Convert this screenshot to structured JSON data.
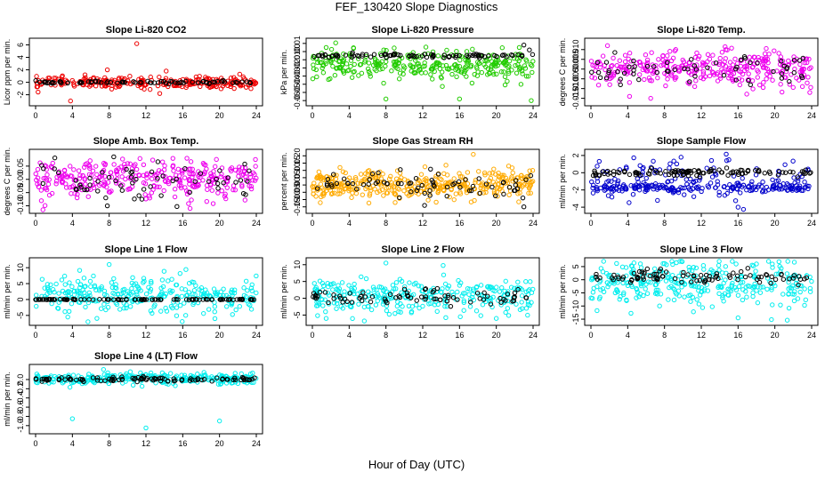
{
  "figure": {
    "title": "FEF_130420  Slope Diagnostics",
    "xlabel": "Hour of Day (UTC)"
  },
  "colors": {
    "black": "#000000",
    "red": "#ee0000",
    "green": "#22cc00",
    "magenta": "#ee00ee",
    "orange": "#ffaa00",
    "blue": "#0000cc",
    "cyan": "#00eeee"
  },
  "chart_data": [
    {
      "id": "co2",
      "type": "scatter",
      "title": "Slope Li-820 CO2",
      "ylabel": "Licor ppm per min.",
      "xlim": [
        0,
        24
      ],
      "ylim": [
        -3.2,
        6.5
      ],
      "xticks": [
        "0",
        "4",
        "8",
        "12",
        "16",
        "20",
        "24"
      ],
      "yticks": [
        -2,
        0,
        2,
        4,
        6
      ],
      "ytick_labels": [
        "-2",
        "0",
        "2",
        "4",
        "6"
      ],
      "series": [
        {
          "name": "primary",
          "color": "red",
          "center": 0.0,
          "spread": 0.45,
          "count": 260,
          "outliers": [
            [
              11,
              6.2
            ],
            [
              3.8,
              -3.0
            ],
            [
              7.8,
              2.0
            ],
            [
              13.5,
              -1.8
            ],
            [
              14.2,
              1.8
            ]
          ]
        },
        {
          "name": "secondary",
          "color": "black",
          "center": 0.0,
          "spread": 0.1,
          "count": 80,
          "outliers": []
        }
      ]
    },
    {
      "id": "pressure",
      "type": "scatter",
      "title": "Slope Li-820 Pressure",
      "ylabel": "kPa per min.",
      "xlim": [
        0,
        24
      ],
      "ylim": [
        -0.062,
        0.012
      ],
      "xticks": [
        "0",
        "4",
        "8",
        "12",
        "16",
        "20",
        "24"
      ],
      "yticks": [
        0.01,
        0.0,
        -0.01,
        -0.02,
        -0.03,
        -0.04,
        -0.05,
        -0.06
      ],
      "ytick_labels": [
        "0.01",
        "0.00",
        "-0.01",
        "-0.02",
        "-0.03",
        "-0.04",
        "-0.05",
        "-0.06"
      ],
      "series": [
        {
          "name": "primary",
          "color": "green",
          "center": -0.017,
          "spread": 0.009,
          "count": 320,
          "outliers": [
            [
              8,
              -0.058
            ],
            [
              16,
              -0.058
            ],
            [
              23.8,
              -0.06
            ],
            [
              1.5,
              0.005
            ],
            [
              22.5,
              0.005
            ]
          ]
        },
        {
          "name": "secondary",
          "color": "black",
          "center": -0.005,
          "spread": 0.0012,
          "count": 90,
          "outliers": [
            [
              23,
              0.008
            ],
            [
              23.6,
              0.002
            ]
          ]
        }
      ]
    },
    {
      "id": "temp",
      "type": "scatter",
      "title": "Slope Li-820 Temp.",
      "ylabel": "degrees C per min.",
      "xlim": [
        0,
        24
      ],
      "ylim": [
        -0.017,
        0.014
      ],
      "xticks": [
        "0",
        "4",
        "8",
        "12",
        "16",
        "20",
        "24"
      ],
      "yticks": [
        0.01,
        0.005,
        0.0,
        -0.005,
        -0.01,
        -0.015
      ],
      "ytick_labels": [
        "0.010",
        "0.005",
        "0.000",
        "-0.005",
        "-0.010",
        "-0.015"
      ],
      "series": [
        {
          "name": "primary",
          "color": "magenta",
          "center": 0.0,
          "spread": 0.0045,
          "count": 320,
          "outliers": [
            [
              1.8,
              0.012
            ],
            [
              4.2,
              -0.014
            ],
            [
              6.5,
              -0.015
            ],
            [
              23.8,
              -0.012
            ]
          ]
        },
        {
          "name": "secondary",
          "color": "black",
          "center": 0.0,
          "spread": 0.004,
          "count": 60,
          "outliers": []
        }
      ]
    },
    {
      "id": "ambbox",
      "type": "scatter",
      "title": "Slope Amb. Box Temp.",
      "ylabel": "degrees C per min.",
      "xlim": [
        0,
        24
      ],
      "ylim": [
        -0.115,
        0.1
      ],
      "xticks": [
        "0",
        "4",
        "8",
        "12",
        "16",
        "20",
        "24"
      ],
      "yticks": [
        0.05,
        0.0,
        -0.05,
        -0.1
      ],
      "ytick_labels": [
        "0.05",
        "0.00",
        "-0.05",
        "-0.10"
      ],
      "series": [
        {
          "name": "primary",
          "color": "magenta",
          "center": 0.0,
          "spread": 0.035,
          "count": 330,
          "outliers": [
            [
              16.8,
              -0.11
            ]
          ]
        },
        {
          "name": "secondary",
          "color": "black",
          "center": 0.0,
          "spread": 0.035,
          "count": 60,
          "outliers": [
            [
              8.5,
              0.085
            ],
            [
              7.8,
              -0.1
            ]
          ]
        }
      ]
    },
    {
      "id": "rh",
      "type": "scatter",
      "title": "Slope Gas Stream RH",
      "ylabel": "percent per min.",
      "xlim": [
        0,
        24
      ],
      "ylim": [
        -0.17,
        0.22
      ],
      "xticks": [
        "0",
        "4",
        "8",
        "12",
        "16",
        "20",
        "24"
      ],
      "yticks": [
        0.2,
        0.15,
        0.1,
        0.05,
        0.0,
        -0.05,
        -0.1,
        -0.15
      ],
      "ytick_labels": [
        "0.20",
        "0.15",
        "0.10",
        "0.05",
        "0.00",
        "-0.05",
        "-0.10",
        "-0.15"
      ],
      "series": [
        {
          "name": "primary",
          "color": "orange",
          "center": 0.0,
          "spread": 0.05,
          "count": 380,
          "outliers": [
            [
              17.5,
              0.21
            ],
            [
              3,
              0.12
            ],
            [
              9,
              -0.12
            ]
          ]
        },
        {
          "name": "secondary",
          "color": "black",
          "center": 0.0,
          "spread": 0.05,
          "count": 70,
          "outliers": [
            [
              23,
              -0.15
            ],
            [
              12.2,
              -0.14
            ]
          ]
        }
      ]
    },
    {
      "id": "sample",
      "type": "scatter",
      "title": "Slope Sample Flow",
      "ylabel": "ml/min per min.",
      "xlim": [
        0,
        24
      ],
      "ylim": [
        -4.3,
        2.3
      ],
      "xticks": [
        "0",
        "4",
        "8",
        "12",
        "16",
        "20",
        "24"
      ],
      "yticks": [
        2,
        0,
        -2,
        -4
      ],
      "ytick_labels": [
        "2",
        "0",
        "-2",
        "-4"
      ],
      "series": [
        {
          "name": "primary",
          "color": "blue",
          "center": -1.8,
          "spread": 0.25,
          "count": 180,
          "outliers": [
            [
              9.8,
              1.8
            ],
            [
              16,
              -4.0
            ],
            [
              15,
              1.5
            ]
          ]
        },
        {
          "name": "scatter",
          "color": "blue",
          "center": -0.6,
          "spread": 1.1,
          "count": 110,
          "outliers": []
        },
        {
          "name": "secondary",
          "color": "black",
          "center": 0.05,
          "spread": 0.2,
          "count": 110,
          "outliers": []
        }
      ]
    },
    {
      "id": "line1",
      "type": "scatter",
      "title": "Slope Line 1 Flow",
      "ylabel": "ml/min per min.",
      "xlim": [
        0,
        24
      ],
      "ylim": [
        -7,
        12
      ],
      "xticks": [
        "0",
        "4",
        "8",
        "12",
        "16",
        "20",
        "24"
      ],
      "yticks": [
        10,
        5,
        0,
        -5
      ],
      "ytick_labels": [
        "10",
        "5",
        "0",
        "-5"
      ],
      "series": [
        {
          "name": "primary",
          "color": "cyan",
          "center": 1.5,
          "spread": 2.8,
          "count": 300,
          "outliers": [
            [
              8,
              11
            ],
            [
              3.5,
              -5.5
            ],
            [
              19.5,
              -6
            ]
          ]
        },
        {
          "name": "secondary",
          "color": "black",
          "center": 0.0,
          "spread": 0.05,
          "count": 110,
          "outliers": []
        }
      ]
    },
    {
      "id": "line2",
      "type": "scatter",
      "title": "Slope Line 2 Flow",
      "ylabel": "ml/min per min.",
      "xlim": [
        0,
        24
      ],
      "ylim": [
        -7,
        11
      ],
      "xticks": [
        "0",
        "4",
        "8",
        "12",
        "16",
        "20",
        "24"
      ],
      "yticks": [
        10,
        5,
        0,
        -5
      ],
      "ytick_labels": [
        "10",
        "5",
        "0",
        "-5"
      ],
      "series": [
        {
          "name": "primary",
          "color": "cyan",
          "center": 0.5,
          "spread": 2.6,
          "count": 300,
          "outliers": [
            [
              8,
              10.5
            ],
            [
              1.5,
              -6
            ],
            [
              20,
              -6
            ]
          ]
        },
        {
          "name": "secondary",
          "color": "black",
          "center": 0.3,
          "spread": 1.1,
          "count": 80,
          "outliers": []
        }
      ]
    },
    {
      "id": "line3",
      "type": "scatter",
      "title": "Slope Line 3 Flow",
      "ylabel": "ml/min per min.",
      "xlim": [
        0,
        24
      ],
      "ylim": [
        -16,
        7
      ],
      "xticks": [
        "0",
        "4",
        "8",
        "12",
        "16",
        "20",
        "24"
      ],
      "yticks": [
        5,
        0,
        -5,
        -10,
        -15
      ],
      "ytick_labels": [
        "5",
        "0",
        "-5",
        "-10",
        "-15"
      ],
      "series": [
        {
          "name": "primary",
          "color": "cyan",
          "center": -1.5,
          "spread": 4.5,
          "count": 320,
          "outliers": [
            [
              16,
              -14.5
            ],
            [
              18,
              6
            ]
          ]
        },
        {
          "name": "secondary",
          "color": "black",
          "center": 1.0,
          "spread": 1.3,
          "count": 90,
          "outliers": []
        }
      ]
    },
    {
      "id": "line4",
      "type": "scatter",
      "title": "Slope Line 4 (LT) Flow",
      "ylabel": "ml/min per min.",
      "xlim": [
        0,
        24
      ],
      "ylim": [
        -1.1,
        0.25
      ],
      "xticks": [
        "0",
        "4",
        "8",
        "12",
        "16",
        "20",
        "24"
      ],
      "yticks": [
        0.0,
        -0.2,
        -0.4,
        -0.6,
        -0.8,
        -1.0
      ],
      "ytick_labels": [
        "0.0",
        "-0.2",
        "-0.4",
        "-0.6",
        "-0.8",
        "-1.0"
      ],
      "series": [
        {
          "name": "primary",
          "color": "cyan",
          "center": 0.02,
          "spread": 0.06,
          "count": 300,
          "outliers": [
            [
              4,
              -0.85
            ],
            [
              12,
              -1.05
            ],
            [
              20,
              -0.9
            ]
          ]
        },
        {
          "name": "secondary",
          "color": "black",
          "center": 0.0,
          "spread": 0.03,
          "count": 100,
          "outliers": []
        }
      ]
    }
  ]
}
